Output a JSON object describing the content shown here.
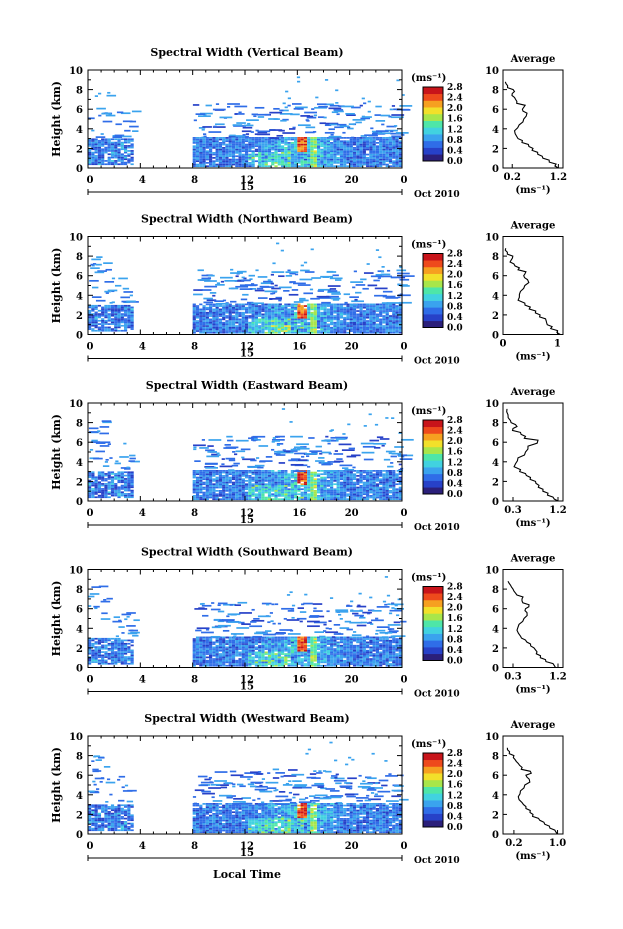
{
  "common": {
    "ylabel": "Height (km)",
    "yticks": [
      "0",
      "2",
      "4",
      "6",
      "8",
      "10"
    ],
    "xticks": [
      "0",
      "4",
      "8",
      "12",
      "16",
      "20",
      "0"
    ],
    "date_day": "15",
    "date_month": "Oct 2010",
    "cbar_unit": "(ms⁻¹)",
    "cbar_ticks": [
      "0.0",
      "0.4",
      "0.8",
      "1.2",
      "1.6",
      "2.0",
      "2.4",
      "2.8"
    ],
    "avg_title": "Average",
    "avg_xlabel": "(ms⁻¹)",
    "xlabel": "Local Time",
    "colors": [
      "#2b1f7a",
      "#2741c8",
      "#2f6de8",
      "#3aa3ee",
      "#41d2e0",
      "#4ee6a8",
      "#a8e64a",
      "#f2e02a",
      "#f6a020",
      "#ee4a1c",
      "#c8141a"
    ]
  },
  "chart_data": [
    {
      "type": "heatmap",
      "title": "Spectral Width (Vertical Beam)",
      "xlabel": "",
      "ylabel": "Height (km)",
      "xlim": [
        0,
        24
      ],
      "ylim": [
        0,
        10
      ],
      "colorbar_range": [
        0.0,
        2.8
      ],
      "avg": {
        "xticks": [
          "0.2",
          "1.2"
        ],
        "xlim": [
          0,
          1.3
        ],
        "profile": [
          [
            1.2,
            0
          ],
          [
            1.15,
            0.4
          ],
          [
            1.0,
            0.8
          ],
          [
            0.85,
            1.2
          ],
          [
            0.75,
            1.6
          ],
          [
            0.65,
            2.0
          ],
          [
            0.55,
            2.4
          ],
          [
            0.42,
            2.8
          ],
          [
            0.3,
            3.2
          ],
          [
            0.25,
            3.8
          ],
          [
            0.35,
            4.4
          ],
          [
            0.45,
            5.0
          ],
          [
            0.52,
            5.6
          ],
          [
            0.42,
            6.0
          ],
          [
            0.48,
            6.4
          ],
          [
            0.3,
            6.8
          ],
          [
            0.25,
            7.2
          ],
          [
            0.2,
            7.6
          ],
          [
            0.22,
            8.0
          ],
          [
            0.1,
            8.4
          ],
          [
            0.05,
            8.8
          ]
        ]
      }
    },
    {
      "type": "heatmap",
      "title": "Spectral Width (Northward Beam)",
      "xlabel": "",
      "ylabel": "Height (km)",
      "xlim": [
        0,
        24
      ],
      "ylim": [
        0,
        10
      ],
      "colorbar_range": [
        0.0,
        2.8
      ],
      "avg": {
        "xticks": [
          "0",
          "1"
        ],
        "xlim": [
          0,
          1.1
        ],
        "profile": [
          [
            1.05,
            0
          ],
          [
            1.0,
            0.4
          ],
          [
            0.9,
            0.8
          ],
          [
            0.8,
            1.2
          ],
          [
            0.78,
            1.6
          ],
          [
            0.68,
            2.0
          ],
          [
            0.6,
            2.4
          ],
          [
            0.5,
            2.8
          ],
          [
            0.4,
            3.2
          ],
          [
            0.3,
            3.8
          ],
          [
            0.32,
            4.4
          ],
          [
            0.4,
            5.0
          ],
          [
            0.45,
            5.6
          ],
          [
            0.38,
            6.0
          ],
          [
            0.42,
            6.4
          ],
          [
            0.3,
            6.8
          ],
          [
            0.2,
            7.2
          ],
          [
            0.15,
            7.6
          ],
          [
            0.18,
            8.0
          ],
          [
            0.08,
            8.4
          ],
          [
            0.05,
            8.8
          ]
        ]
      }
    },
    {
      "type": "heatmap",
      "title": "Spectral Width (Eastward Beam)",
      "xlabel": "",
      "ylabel": "Height (km)",
      "xlim": [
        0,
        24
      ],
      "ylim": [
        0,
        10
      ],
      "colorbar_range": [
        0.0,
        2.8
      ],
      "avg": {
        "xticks": [
          "0.3",
          "1.2"
        ],
        "xlim": [
          0.1,
          1.3
        ],
        "profile": [
          [
            1.2,
            0
          ],
          [
            1.1,
            0.4
          ],
          [
            1.0,
            0.8
          ],
          [
            0.9,
            1.2
          ],
          [
            0.82,
            1.6
          ],
          [
            0.75,
            2.0
          ],
          [
            0.65,
            2.4
          ],
          [
            0.55,
            2.8
          ],
          [
            0.45,
            3.2
          ],
          [
            0.35,
            3.8
          ],
          [
            0.4,
            4.4
          ],
          [
            0.55,
            5.0
          ],
          [
            0.6,
            5.6
          ],
          [
            0.8,
            6.2
          ],
          [
            0.55,
            6.6
          ],
          [
            0.45,
            7.0
          ],
          [
            0.3,
            7.4
          ],
          [
            0.35,
            7.8
          ],
          [
            0.25,
            8.2
          ],
          [
            0.2,
            8.8
          ],
          [
            0.18,
            9.4
          ]
        ]
      }
    },
    {
      "type": "heatmap",
      "title": "Spectral Width (Southward Beam)",
      "xlabel": "",
      "ylabel": "Height (km)",
      "xlim": [
        0,
        24
      ],
      "ylim": [
        0,
        10
      ],
      "colorbar_range": [
        0.0,
        2.8
      ],
      "avg": {
        "xticks": [
          "0.3",
          "1.2"
        ],
        "xlim": [
          0.1,
          1.3
        ],
        "profile": [
          [
            1.15,
            0
          ],
          [
            1.1,
            0.4
          ],
          [
            0.95,
            0.8
          ],
          [
            0.85,
            1.2
          ],
          [
            0.78,
            1.6
          ],
          [
            0.72,
            2.0
          ],
          [
            0.65,
            2.4
          ],
          [
            0.55,
            2.8
          ],
          [
            0.45,
            3.2
          ],
          [
            0.38,
            3.8
          ],
          [
            0.42,
            4.4
          ],
          [
            0.52,
            5.0
          ],
          [
            0.58,
            5.6
          ],
          [
            0.55,
            6.0
          ],
          [
            0.62,
            6.4
          ],
          [
            0.48,
            6.8
          ],
          [
            0.5,
            7.2
          ],
          [
            0.35,
            7.6
          ],
          [
            0.3,
            8.0
          ],
          [
            0.25,
            8.4
          ],
          [
            0.2,
            8.8
          ]
        ]
      }
    },
    {
      "type": "heatmap",
      "title": "Spectral Width (Westward Beam)",
      "xlabel": "Local Time",
      "ylabel": "Height (km)",
      "xlim": [
        0,
        24
      ],
      "ylim": [
        0,
        10
      ],
      "colorbar_range": [
        0.0,
        2.8
      ],
      "avg": {
        "xticks": [
          "0.2",
          "1.0"
        ],
        "xlim": [
          0,
          1.1
        ],
        "profile": [
          [
            1.0,
            0
          ],
          [
            0.95,
            0.4
          ],
          [
            0.85,
            0.8
          ],
          [
            0.75,
            1.2
          ],
          [
            0.65,
            1.6
          ],
          [
            0.55,
            2.0
          ],
          [
            0.5,
            2.4
          ],
          [
            0.42,
            2.8
          ],
          [
            0.35,
            3.2
          ],
          [
            0.28,
            3.8
          ],
          [
            0.32,
            4.4
          ],
          [
            0.4,
            5.0
          ],
          [
            0.48,
            5.6
          ],
          [
            0.42,
            6.0
          ],
          [
            0.5,
            6.4
          ],
          [
            0.35,
            6.8
          ],
          [
            0.28,
            7.2
          ],
          [
            0.22,
            7.6
          ],
          [
            0.2,
            8.0
          ],
          [
            0.12,
            8.4
          ],
          [
            0.08,
            8.8
          ]
        ]
      }
    }
  ]
}
